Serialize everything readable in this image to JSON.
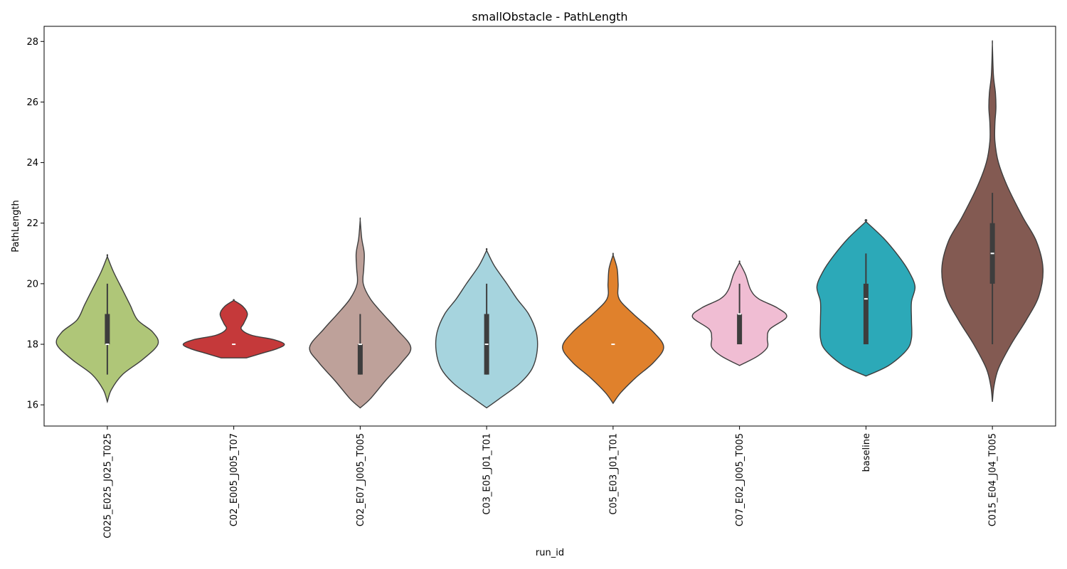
{
  "chart_data": {
    "type": "violin",
    "title": "smallObstacle - PathLength",
    "xlabel": "run_id",
    "ylabel": "PathLength",
    "ylim": [
      15.3,
      28.5
    ],
    "yticks": [
      16,
      18,
      20,
      22,
      24,
      26,
      28
    ],
    "grid": false,
    "categories": [
      "C025_E025_J025_T025",
      "C02_E005_J005_T07",
      "C02_E07_J005_T005",
      "C03_E05_J01_T01",
      "C05_E03_J01_T01",
      "C07_E02_J005_T005",
      "baseline",
      "C015_E04_J04_T005"
    ],
    "colors": [
      "#afc678",
      "#c5393a",
      "#bea19a",
      "#a6d4de",
      "#e0812c",
      "#f0bdd3",
      "#2ca9b8",
      "#835a52"
    ],
    "series": [
      {
        "min": 16.1,
        "max": 20.9,
        "q1": 18.0,
        "median": 18.0,
        "q3": 19.0,
        "whisker_low": 17.0,
        "whisker_high": 20.0,
        "density": [
          [
            16.1,
            0
          ],
          [
            16.5,
            0.08
          ],
          [
            17.0,
            0.3
          ],
          [
            17.5,
            0.7
          ],
          [
            18.0,
            1.0
          ],
          [
            18.4,
            0.9
          ],
          [
            18.8,
            0.6
          ],
          [
            19.3,
            0.45
          ],
          [
            19.8,
            0.3
          ],
          [
            20.4,
            0.12
          ],
          [
            20.9,
            0
          ]
        ]
      },
      {
        "min": 17.55,
        "max": 19.45,
        "q1": 18.0,
        "median": 18.0,
        "q3": 18.0,
        "whisker_low": 18.0,
        "whisker_high": 18.0,
        "density": [
          [
            17.55,
            0.25
          ],
          [
            17.7,
            0.55
          ],
          [
            17.85,
            0.85
          ],
          [
            18.0,
            1.0
          ],
          [
            18.15,
            0.8
          ],
          [
            18.3,
            0.35
          ],
          [
            18.5,
            0.15
          ],
          [
            18.7,
            0.2
          ],
          [
            19.0,
            0.27
          ],
          [
            19.25,
            0.18
          ],
          [
            19.45,
            0
          ]
        ]
      },
      {
        "min": 15.9,
        "max": 22.1,
        "q1": 17.0,
        "median": 18.0,
        "q3": 18.0,
        "whisker_low": 17.0,
        "whisker_high": 19.0,
        "density": [
          [
            15.9,
            0
          ],
          [
            16.2,
            0.2
          ],
          [
            16.8,
            0.5
          ],
          [
            17.4,
            0.82
          ],
          [
            17.9,
            1.0
          ],
          [
            18.5,
            0.72
          ],
          [
            19.0,
            0.45
          ],
          [
            19.5,
            0.2
          ],
          [
            20.0,
            0.06
          ],
          [
            20.5,
            0.07
          ],
          [
            21.0,
            0.08
          ],
          [
            21.5,
            0.03
          ],
          [
            22.1,
            0
          ]
        ]
      },
      {
        "min": 15.9,
        "max": 21.1,
        "q1": 17.0,
        "median": 18.0,
        "q3": 19.0,
        "whisker_low": 17.0,
        "whisker_high": 20.0,
        "density": [
          [
            15.9,
            0
          ],
          [
            16.2,
            0.25
          ],
          [
            16.7,
            0.65
          ],
          [
            17.2,
            0.9
          ],
          [
            17.8,
            1.0
          ],
          [
            18.4,
            0.98
          ],
          [
            19.0,
            0.83
          ],
          [
            19.5,
            0.6
          ],
          [
            20.0,
            0.4
          ],
          [
            20.6,
            0.15
          ],
          [
            21.1,
            0
          ]
        ]
      },
      {
        "min": 16.05,
        "max": 20.95,
        "q1": 18.0,
        "median": 18.0,
        "q3": 18.0,
        "whisker_low": 18.0,
        "whisker_high": 18.0,
        "density": [
          [
            16.05,
            0
          ],
          [
            16.4,
            0.15
          ],
          [
            16.9,
            0.45
          ],
          [
            17.4,
            0.8
          ],
          [
            17.9,
            1.0
          ],
          [
            18.4,
            0.8
          ],
          [
            19.0,
            0.4
          ],
          [
            19.5,
            0.12
          ],
          [
            20.0,
            0.1
          ],
          [
            20.5,
            0.08
          ],
          [
            20.95,
            0
          ]
        ]
      },
      {
        "min": 17.3,
        "max": 20.7,
        "q1": 18.0,
        "median": 19.0,
        "q3": 19.0,
        "whisker_low": 18.0,
        "whisker_high": 20.0,
        "density": [
          [
            17.3,
            0
          ],
          [
            17.6,
            0.35
          ],
          [
            17.9,
            0.55
          ],
          [
            18.2,
            0.55
          ],
          [
            18.5,
            0.6
          ],
          [
            18.9,
            0.93
          ],
          [
            19.2,
            0.75
          ],
          [
            19.5,
            0.38
          ],
          [
            19.8,
            0.22
          ],
          [
            20.3,
            0.12
          ],
          [
            20.7,
            0
          ]
        ]
      },
      {
        "min": 16.95,
        "max": 22.05,
        "q1": 18.0,
        "median": 19.5,
        "q3": 20.0,
        "whisker_low": 18.0,
        "whisker_high": 21.0,
        "density": [
          [
            16.95,
            0
          ],
          [
            17.3,
            0.45
          ],
          [
            17.8,
            0.8
          ],
          [
            18.2,
            0.9
          ],
          [
            18.8,
            0.9
          ],
          [
            19.4,
            0.9
          ],
          [
            19.9,
            0.97
          ],
          [
            20.4,
            0.85
          ],
          [
            20.9,
            0.65
          ],
          [
            21.5,
            0.35
          ],
          [
            22.05,
            0
          ]
        ]
      },
      {
        "min": 16.1,
        "max": 27.9,
        "q1": 20.0,
        "median": 21.0,
        "q3": 22.0,
        "whisker_low": 18.0,
        "whisker_high": 23.0,
        "density": [
          [
            16.1,
            0
          ],
          [
            16.6,
            0.03
          ],
          [
            17.2,
            0.12
          ],
          [
            18.0,
            0.37
          ],
          [
            18.8,
            0.67
          ],
          [
            19.6,
            0.92
          ],
          [
            20.5,
            1.0
          ],
          [
            21.4,
            0.87
          ],
          [
            22.2,
            0.6
          ],
          [
            23.2,
            0.3
          ],
          [
            24.0,
            0.12
          ],
          [
            24.7,
            0.05
          ],
          [
            25.3,
            0.05
          ],
          [
            25.8,
            0.07
          ],
          [
            26.3,
            0.06
          ],
          [
            26.9,
            0.02
          ],
          [
            27.9,
            0
          ]
        ]
      }
    ]
  }
}
